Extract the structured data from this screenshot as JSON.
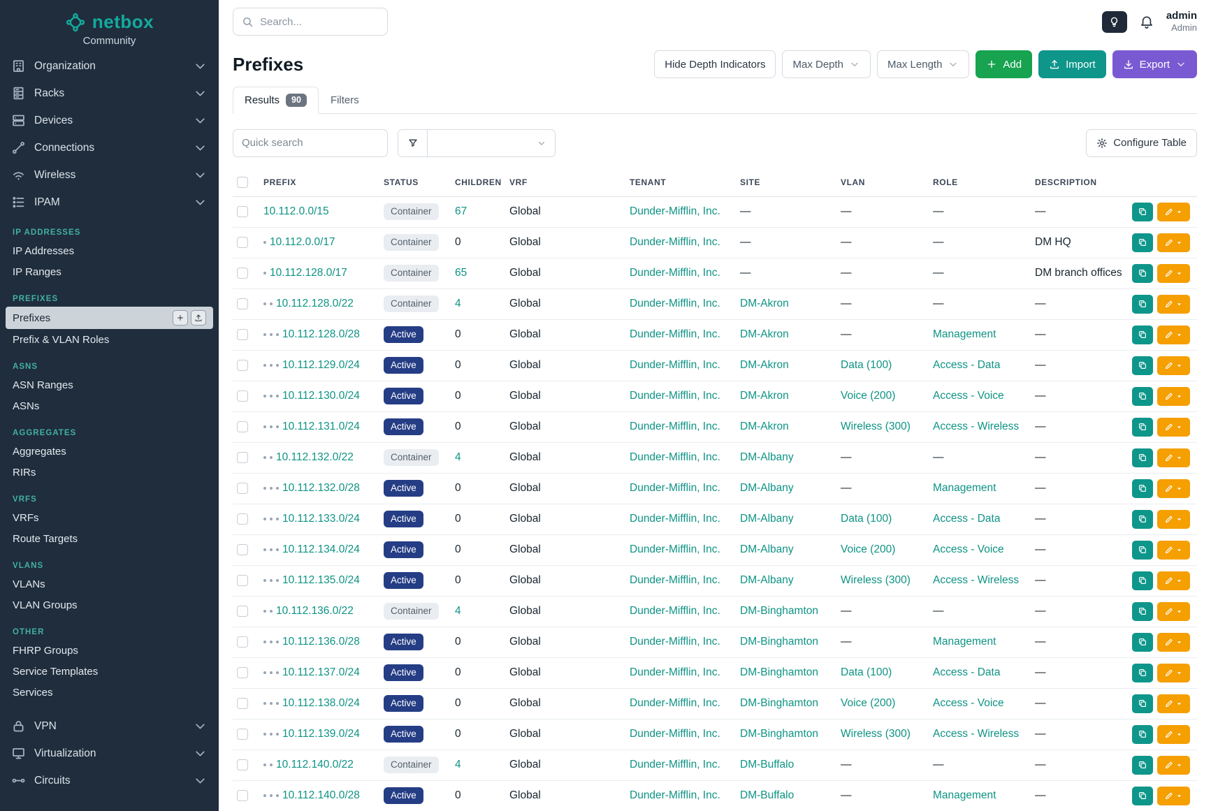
{
  "brand": {
    "name": "netbox",
    "subtitle": "Community"
  },
  "topbar": {
    "search_placeholder": "Search...",
    "user_name": "admin",
    "user_role": "Admin"
  },
  "sidebar": {
    "top_items": [
      {
        "label": "Organization",
        "icon": "organization-icon"
      },
      {
        "label": "Racks",
        "icon": "racks-icon"
      },
      {
        "label": "Devices",
        "icon": "devices-icon"
      },
      {
        "label": "Connections",
        "icon": "connections-icon"
      },
      {
        "label": "Wireless",
        "icon": "wireless-icon"
      },
      {
        "label": "IPAM",
        "icon": "ipam-icon"
      }
    ],
    "sections": [
      {
        "title": "IP ADDRESSES",
        "items": [
          {
            "label": "IP Addresses"
          },
          {
            "label": "IP Ranges"
          }
        ]
      },
      {
        "title": "PREFIXES",
        "items": [
          {
            "label": "Prefixes",
            "active": true
          },
          {
            "label": "Prefix & VLAN Roles"
          }
        ]
      },
      {
        "title": "ASNS",
        "items": [
          {
            "label": "ASN Ranges"
          },
          {
            "label": "ASNs"
          }
        ]
      },
      {
        "title": "AGGREGATES",
        "items": [
          {
            "label": "Aggregates"
          },
          {
            "label": "RIRs"
          }
        ]
      },
      {
        "title": "VRFS",
        "items": [
          {
            "label": "VRFs"
          },
          {
            "label": "Route Targets"
          }
        ]
      },
      {
        "title": "VLANS",
        "items": [
          {
            "label": "VLANs"
          },
          {
            "label": "VLAN Groups"
          }
        ]
      },
      {
        "title": "OTHER",
        "items": [
          {
            "label": "FHRP Groups"
          },
          {
            "label": "Service Templates"
          },
          {
            "label": "Services"
          }
        ]
      }
    ],
    "bottom_items": [
      {
        "label": "VPN",
        "icon": "vpn-icon"
      },
      {
        "label": "Virtualization",
        "icon": "virtualization-icon"
      },
      {
        "label": "Circuits",
        "icon": "circuits-icon"
      }
    ]
  },
  "page": {
    "title": "Prefixes",
    "toolbar": {
      "hide_depth_label": "Hide Depth Indicators",
      "max_depth_label": "Max Depth",
      "max_length_label": "Max Length",
      "add_label": "Add",
      "import_label": "Import",
      "export_label": "Export"
    },
    "tabs": [
      {
        "label": "Results",
        "badge": "90",
        "active": true
      },
      {
        "label": "Filters",
        "active": false
      }
    ],
    "quick_search_placeholder": "Quick search",
    "configure_table_label": "Configure Table"
  },
  "table": {
    "columns": [
      "PREFIX",
      "STATUS",
      "CHILDREN",
      "VRF",
      "TENANT",
      "SITE",
      "VLAN",
      "ROLE",
      "DESCRIPTION"
    ],
    "rows": [
      {
        "depth": 0,
        "prefix": "10.112.0.0/15",
        "status": "Container",
        "children": "67",
        "vrf": "Global",
        "tenant": "Dunder-Mifflin, Inc.",
        "site": "—",
        "vlan": "—",
        "role": "—",
        "description": "—"
      },
      {
        "depth": 1,
        "prefix": "10.112.0.0/17",
        "status": "Container",
        "children": "0",
        "vrf": "Global",
        "tenant": "Dunder-Mifflin, Inc.",
        "site": "—",
        "vlan": "—",
        "role": "—",
        "description": "DM HQ"
      },
      {
        "depth": 1,
        "prefix": "10.112.128.0/17",
        "status": "Container",
        "children": "65",
        "vrf": "Global",
        "tenant": "Dunder-Mifflin, Inc.",
        "site": "—",
        "vlan": "—",
        "role": "—",
        "description": "DM branch offices"
      },
      {
        "depth": 2,
        "prefix": "10.112.128.0/22",
        "status": "Container",
        "children": "4",
        "vrf": "Global",
        "tenant": "Dunder-Mifflin, Inc.",
        "site": "DM-Akron",
        "vlan": "—",
        "role": "—",
        "description": "—"
      },
      {
        "depth": 3,
        "prefix": "10.112.128.0/28",
        "status": "Active",
        "children": "0",
        "vrf": "Global",
        "tenant": "Dunder-Mifflin, Inc.",
        "site": "DM-Akron",
        "vlan": "—",
        "role": "Management",
        "description": "—"
      },
      {
        "depth": 3,
        "prefix": "10.112.129.0/24",
        "status": "Active",
        "children": "0",
        "vrf": "Global",
        "tenant": "Dunder-Mifflin, Inc.",
        "site": "DM-Akron",
        "vlan": "Data (100)",
        "role": "Access - Data",
        "description": "—"
      },
      {
        "depth": 3,
        "prefix": "10.112.130.0/24",
        "status": "Active",
        "children": "0",
        "vrf": "Global",
        "tenant": "Dunder-Mifflin, Inc.",
        "site": "DM-Akron",
        "vlan": "Voice (200)",
        "role": "Access - Voice",
        "description": "—"
      },
      {
        "depth": 3,
        "prefix": "10.112.131.0/24",
        "status": "Active",
        "children": "0",
        "vrf": "Global",
        "tenant": "Dunder-Mifflin, Inc.",
        "site": "DM-Akron",
        "vlan": "Wireless (300)",
        "role": "Access - Wireless",
        "description": "—"
      },
      {
        "depth": 2,
        "prefix": "10.112.132.0/22",
        "status": "Container",
        "children": "4",
        "vrf": "Global",
        "tenant": "Dunder-Mifflin, Inc.",
        "site": "DM-Albany",
        "vlan": "—",
        "role": "—",
        "description": "—"
      },
      {
        "depth": 3,
        "prefix": "10.112.132.0/28",
        "status": "Active",
        "children": "0",
        "vrf": "Global",
        "tenant": "Dunder-Mifflin, Inc.",
        "site": "DM-Albany",
        "vlan": "—",
        "role": "Management",
        "description": "—"
      },
      {
        "depth": 3,
        "prefix": "10.112.133.0/24",
        "status": "Active",
        "children": "0",
        "vrf": "Global",
        "tenant": "Dunder-Mifflin, Inc.",
        "site": "DM-Albany",
        "vlan": "Data (100)",
        "role": "Access - Data",
        "description": "—"
      },
      {
        "depth": 3,
        "prefix": "10.112.134.0/24",
        "status": "Active",
        "children": "0",
        "vrf": "Global",
        "tenant": "Dunder-Mifflin, Inc.",
        "site": "DM-Albany",
        "vlan": "Voice (200)",
        "role": "Access - Voice",
        "description": "—"
      },
      {
        "depth": 3,
        "prefix": "10.112.135.0/24",
        "status": "Active",
        "children": "0",
        "vrf": "Global",
        "tenant": "Dunder-Mifflin, Inc.",
        "site": "DM-Albany",
        "vlan": "Wireless (300)",
        "role": "Access - Wireless",
        "description": "—"
      },
      {
        "depth": 2,
        "prefix": "10.112.136.0/22",
        "status": "Container",
        "children": "4",
        "vrf": "Global",
        "tenant": "Dunder-Mifflin, Inc.",
        "site": "DM-Binghamton",
        "vlan": "—",
        "role": "—",
        "description": "—"
      },
      {
        "depth": 3,
        "prefix": "10.112.136.0/28",
        "status": "Active",
        "children": "0",
        "vrf": "Global",
        "tenant": "Dunder-Mifflin, Inc.",
        "site": "DM-Binghamton",
        "vlan": "—",
        "role": "Management",
        "description": "—"
      },
      {
        "depth": 3,
        "prefix": "10.112.137.0/24",
        "status": "Active",
        "children": "0",
        "vrf": "Global",
        "tenant": "Dunder-Mifflin, Inc.",
        "site": "DM-Binghamton",
        "vlan": "Data (100)",
        "role": "Access - Data",
        "description": "—"
      },
      {
        "depth": 3,
        "prefix": "10.112.138.0/24",
        "status": "Active",
        "children": "0",
        "vrf": "Global",
        "tenant": "Dunder-Mifflin, Inc.",
        "site": "DM-Binghamton",
        "vlan": "Voice (200)",
        "role": "Access - Voice",
        "description": "—"
      },
      {
        "depth": 3,
        "prefix": "10.112.139.0/24",
        "status": "Active",
        "children": "0",
        "vrf": "Global",
        "tenant": "Dunder-Mifflin, Inc.",
        "site": "DM-Binghamton",
        "vlan": "Wireless (300)",
        "role": "Access - Wireless",
        "description": "—"
      },
      {
        "depth": 2,
        "prefix": "10.112.140.0/22",
        "status": "Container",
        "children": "4",
        "vrf": "Global",
        "tenant": "Dunder-Mifflin, Inc.",
        "site": "DM-Buffalo",
        "vlan": "—",
        "role": "—",
        "description": "—"
      },
      {
        "depth": 3,
        "prefix": "10.112.140.0/28",
        "status": "Active",
        "children": "0",
        "vrf": "Global",
        "tenant": "Dunder-Mifflin, Inc.",
        "site": "DM-Buffalo",
        "vlan": "—",
        "role": "Management",
        "description": "—"
      }
    ]
  },
  "colors": {
    "brand_teal": "#0e9384",
    "sidebar_bg": "#1f2d3d",
    "status_active_bg": "#253d85",
    "status_container_bg": "#e9edf1",
    "add_button_bg": "#17a34f",
    "import_button_bg": "#0e968a",
    "export_button_bg": "#7a5ad2",
    "edit_button_bg": "#f59f00"
  }
}
